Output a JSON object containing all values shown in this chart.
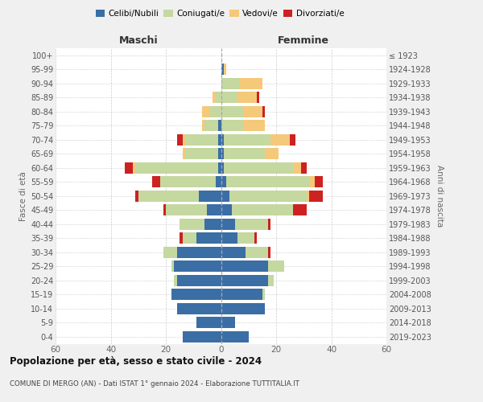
{
  "age_groups": [
    "0-4",
    "5-9",
    "10-14",
    "15-19",
    "20-24",
    "25-29",
    "30-34",
    "35-39",
    "40-44",
    "45-49",
    "50-54",
    "55-59",
    "60-64",
    "65-69",
    "70-74",
    "75-79",
    "80-84",
    "85-89",
    "90-94",
    "95-99",
    "100+"
  ],
  "birth_years": [
    "2019-2023",
    "2014-2018",
    "2009-2013",
    "2004-2008",
    "1999-2003",
    "1994-1998",
    "1989-1993",
    "1984-1988",
    "1979-1983",
    "1974-1978",
    "1969-1973",
    "1964-1968",
    "1959-1963",
    "1954-1958",
    "1949-1953",
    "1944-1948",
    "1939-1943",
    "1934-1938",
    "1929-1933",
    "1924-1928",
    "≤ 1923"
  ],
  "colors": {
    "celibi": "#3a6ea5",
    "coniugati": "#c5d8a0",
    "vedovi": "#f5c97a",
    "divorziati": "#cc2222"
  },
  "maschi": {
    "celibi": [
      14,
      9,
      16,
      18,
      16,
      17,
      16,
      9,
      6,
      5,
      8,
      2,
      1,
      1,
      1,
      1,
      0,
      0,
      0,
      0,
      0
    ],
    "coniugati": [
      0,
      0,
      0,
      0,
      1,
      1,
      5,
      5,
      9,
      15,
      22,
      20,
      30,
      12,
      12,
      5,
      4,
      2,
      0,
      0,
      0
    ],
    "vedovi": [
      0,
      0,
      0,
      0,
      0,
      0,
      0,
      0,
      0,
      0,
      0,
      0,
      1,
      1,
      1,
      1,
      3,
      1,
      0,
      0,
      0
    ],
    "divorziati": [
      0,
      0,
      0,
      0,
      0,
      0,
      0,
      1,
      0,
      1,
      1,
      3,
      3,
      0,
      2,
      0,
      0,
      0,
      0,
      0,
      0
    ]
  },
  "femmine": {
    "celibi": [
      10,
      5,
      16,
      15,
      17,
      17,
      9,
      6,
      5,
      4,
      3,
      2,
      1,
      1,
      1,
      0,
      0,
      0,
      0,
      1,
      0
    ],
    "coniugati": [
      0,
      0,
      0,
      1,
      2,
      6,
      8,
      6,
      12,
      22,
      28,
      30,
      25,
      15,
      17,
      8,
      8,
      6,
      7,
      0,
      0
    ],
    "vedovi": [
      0,
      0,
      0,
      0,
      0,
      0,
      0,
      0,
      0,
      0,
      1,
      2,
      3,
      5,
      7,
      8,
      7,
      7,
      8,
      1,
      0
    ],
    "divorziati": [
      0,
      0,
      0,
      0,
      0,
      0,
      1,
      1,
      1,
      5,
      5,
      3,
      2,
      0,
      2,
      0,
      1,
      1,
      0,
      0,
      0
    ]
  },
  "xlim": 60,
  "title": "Popolazione per età, sesso e stato civile - 2024",
  "subtitle": "COMUNE DI MERGO (AN) - Dati ISTAT 1° gennaio 2024 - Elaborazione TUTTITALIA.IT",
  "label_maschi": "Maschi",
  "label_femmine": "Femmine",
  "ylabel_left": "Fasce di età",
  "ylabel_right": "Anni di nascita",
  "legend_labels": [
    "Celibi/Nubili",
    "Coniugati/e",
    "Vedovi/e",
    "Divorziati/e"
  ],
  "bg_color": "#f0f0f0",
  "plot_bg": "#ffffff"
}
